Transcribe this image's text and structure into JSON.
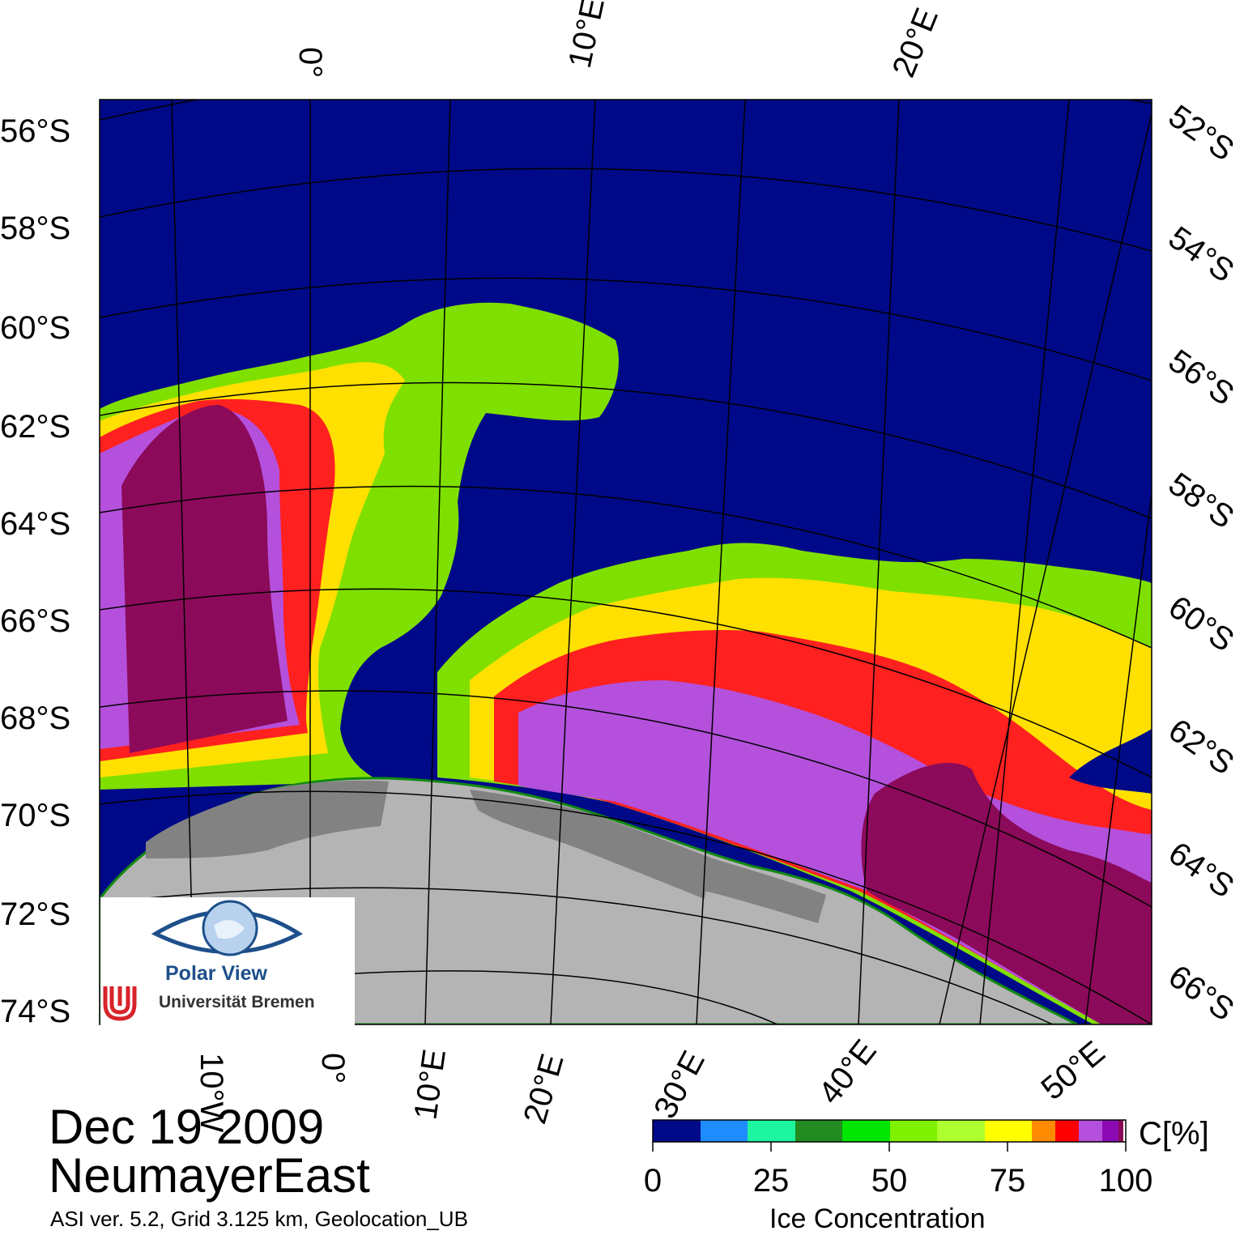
{
  "date": "Dec 19 2009",
  "region": "NeumayerEast",
  "info": "ASI ver. 5.2,  Grid 3.125 km, Geolocation_UB",
  "logo": {
    "name": "Polar View",
    "institution": "Universität Bremen",
    "icon": "polar-view-eye-logo"
  },
  "map": {
    "lat_labels_left": [
      "56°S",
      "58°S",
      "60°S",
      "62°S",
      "64°S",
      "66°S",
      "68°S",
      "70°S",
      "72°S",
      "74°S"
    ],
    "lat_labels_right": [
      "52°S",
      "54°S",
      "56°S",
      "58°S",
      "60°S",
      "62°S",
      "64°S",
      "66°S"
    ],
    "lon_labels_top": [
      "0°",
      "10°E",
      "20°E"
    ],
    "lon_labels_bottom": [
      "10°W",
      "0°",
      "10°E",
      "20°E",
      "30°E",
      "40°E",
      "50°E"
    ],
    "colors": {
      "ocean": "#000a88",
      "land": "#b4b4b4",
      "ice_shelf": "#828282",
      "coast": "#118a11",
      "grid": "#000000"
    }
  },
  "colorbar": {
    "title": "Ice Concentration",
    "unit": "C[%]",
    "ticks": [
      "0",
      "25",
      "50",
      "75",
      "100"
    ],
    "range": [
      0,
      100
    ],
    "colors": [
      "#000a88",
      "#1e8cff",
      "#1ef5a0",
      "#228b22",
      "#00e600",
      "#7ff000",
      "#adff2f",
      "#ffff00",
      "#ff8c00",
      "#ff0000",
      "#b450dc",
      "#8c0ab4",
      "#8c0a5a",
      "#ffffff"
    ]
  }
}
